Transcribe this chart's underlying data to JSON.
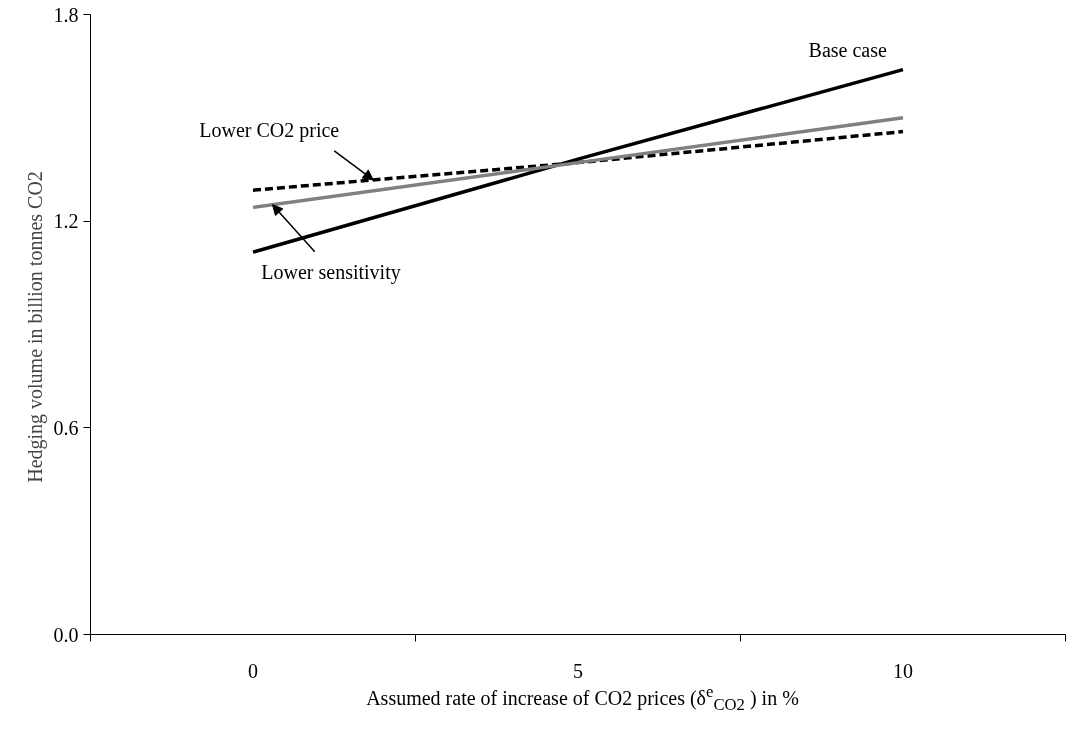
{
  "chart_data": {
    "type": "line",
    "xlabel": "Assumed rate of increase of CO2 prices (δ$^{e}$$_{CO2}$ ) in %",
    "ylabel": "Hedging volume in billion tonnes  CO2",
    "categories": [
      "0",
      "5",
      "10"
    ],
    "series": [
      {
        "name": "Base case",
        "color": "#000000",
        "line_style": "solid",
        "values": [
          1.11,
          1.38,
          1.64
        ]
      },
      {
        "name": "Lower CO2 price",
        "color": "#000000",
        "line_style": "dashed",
        "values": [
          1.29,
          1.37,
          1.46
        ]
      },
      {
        "name": "Lower sensitivity",
        "color": "#808080",
        "line_style": "solid",
        "values": [
          1.24,
          1.37,
          1.5
        ]
      }
    ],
    "ylim": [
      0,
      1.8
    ],
    "yticks": [
      {
        "value": 0,
        "label": "0.0"
      },
      {
        "value": 0.6,
        "label": "0.6"
      },
      {
        "value": 1.2,
        "label": "1.2"
      },
      {
        "value": 1.8,
        "label": "1.8"
      }
    ],
    "grid": false,
    "marker": "none"
  }
}
